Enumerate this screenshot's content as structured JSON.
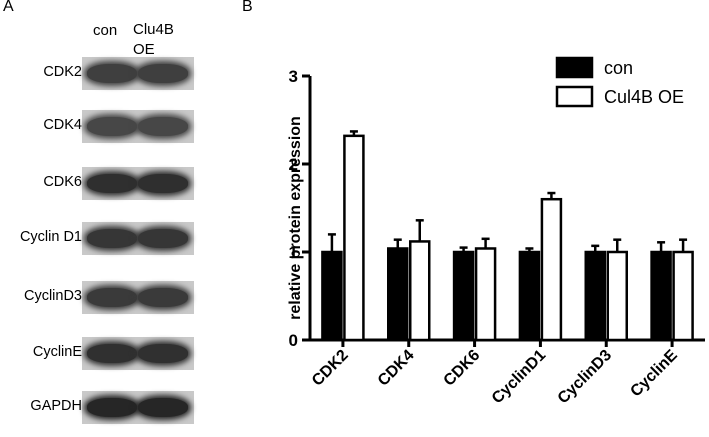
{
  "panel_a": {
    "letter": "A",
    "lanes": [
      "con",
      "Clu4B\nOE"
    ],
    "blots": [
      {
        "label": "CDK2",
        "tone": "#3f3f3f"
      },
      {
        "label": "CDK4",
        "tone": "#474747"
      },
      {
        "label": "CDK6",
        "tone": "#2f2f2f"
      },
      {
        "label": "Cyclin D1",
        "tone": "#363636"
      },
      {
        "label": "CyclinD3",
        "tone": "#3a3a3a"
      },
      {
        "label": "CyclinE",
        "tone": "#303030"
      },
      {
        "label": "GAPDH",
        "tone": "#262626"
      }
    ]
  },
  "panel_b": {
    "letter": "B"
  },
  "chart_data": {
    "type": "bar",
    "categories": [
      "CDK2",
      "CDK4",
      "CDK6",
      "CyclinD1",
      "CyclinD3",
      "CyclinE"
    ],
    "series": [
      {
        "name": "con",
        "values": [
          1.0,
          1.04,
          1.0,
          1.0,
          1.0,
          1.0
        ],
        "errors": [
          0.2,
          0.1,
          0.05,
          0.04,
          0.07,
          0.11
        ],
        "fill": "#000000"
      },
      {
        "name": "Cul4B OE",
        "values": [
          2.32,
          1.12,
          1.04,
          1.6,
          1.0,
          1.0
        ],
        "errors": [
          0.05,
          0.24,
          0.11,
          0.07,
          0.14,
          0.14
        ],
        "fill": "#ffffff"
      }
    ],
    "ylabel": "relative protein expression",
    "xlabel": "",
    "ylim": [
      0,
      3
    ],
    "yticks": [
      "0",
      "1",
      "2",
      "3"
    ],
    "legend": "top-right"
  }
}
